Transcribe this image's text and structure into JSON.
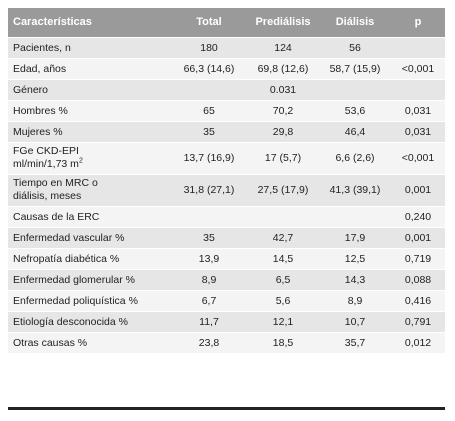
{
  "table": {
    "headers": [
      "Características",
      "Total",
      "Prediálisis",
      "Diálisis",
      "p"
    ],
    "rows": [
      {
        "label": "Pacientes, n",
        "total": "180",
        "pre": "124",
        "dial": "56",
        "p": ""
      },
      {
        "label": "Edad, años",
        "total": "66,3 (14,6)",
        "pre": "69,8 (12,6)",
        "dial": "58,7 (15,9)",
        "p": "<0,001"
      },
      {
        "label": "Género",
        "total": "",
        "pre": "0.031",
        "dial": "",
        "p": ""
      },
      {
        "label": "Hombres %",
        "total": "65",
        "pre": "70,2",
        "dial": "53,6",
        "p": "0,031"
      },
      {
        "label": "Mujeres %",
        "total": "35",
        "pre": "29,8",
        "dial": "46,4",
        "p": "0,031"
      },
      {
        "label_line1": "FGe CKD-EPI",
        "label_line2": "ml/min/1,73 m",
        "label_sup": "2",
        "total": "13,7 (16,9)",
        "pre": "17 (5,7)",
        "dial": "6,6 (2,6)",
        "p": "<0,001"
      },
      {
        "label_line1": "Tiempo en MRC o",
        "label_line2": "diálisis, meses",
        "total": "31,8 (27,1)",
        "pre": "27,5 (17,9)",
        "dial": "41,3 (39,1)",
        "p": "0,001"
      },
      {
        "label": "Causas de la ERC",
        "total": "",
        "pre": "",
        "dial": "",
        "p": "0,240"
      },
      {
        "label": "Enfermedad vascular %",
        "total": "35",
        "pre": "42,7",
        "dial": "17,9",
        "p": "0,001"
      },
      {
        "label": "Nefropatía diabética %",
        "total": "13,9",
        "pre": "14,5",
        "dial": "12,5",
        "p": "0,719"
      },
      {
        "label": "Enfermedad glomerular %",
        "total": "8,9",
        "pre": "6,5",
        "dial": "14,3",
        "p": "0,088"
      },
      {
        "label": "Enfermedad poliquística  %",
        "total": "6,7",
        "pre": "5,6",
        "dial": "8,9",
        "p": "0,416"
      },
      {
        "label": "Etiología desconocida %",
        "total": "11,7",
        "pre": "12,1",
        "dial": "10,7",
        "p": "0,791"
      },
      {
        "label": "Otras causas %",
        "total": "23,8",
        "pre": "18,5",
        "dial": "35,7",
        "p": "0,012"
      }
    ]
  }
}
